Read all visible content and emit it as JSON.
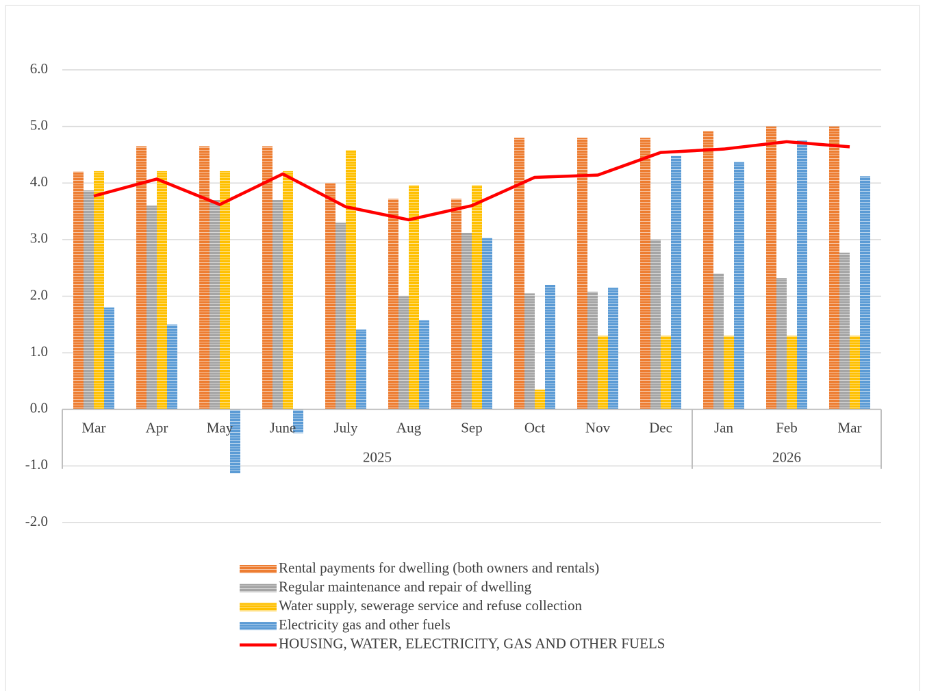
{
  "chart_data": {
    "type": "bar_line",
    "categories": [
      "Mar",
      "Apr",
      "May",
      "June",
      "July",
      "Aug",
      "Sep",
      "Oct",
      "Nov",
      "Dec",
      "Jan",
      "Feb",
      "Mar"
    ],
    "category_groups": [
      {
        "label": "2025",
        "span": 10
      },
      {
        "label": "2026",
        "span": 3
      }
    ],
    "ylim": [
      -2,
      6
    ],
    "yticks": [
      {
        "value": -2,
        "label": "-2.0"
      },
      {
        "value": -1,
        "label": "-1.0"
      },
      {
        "value": 0,
        "label": "0.0"
      },
      {
        "value": 1,
        "label": "1.0"
      },
      {
        "value": 2,
        "label": "2.0"
      },
      {
        "value": 3,
        "label": "3.0"
      },
      {
        "value": 4,
        "label": "4.0"
      },
      {
        "value": 5,
        "label": "5.0"
      },
      {
        "value": 6,
        "label": "6.0"
      }
    ],
    "grid": true,
    "series": [
      {
        "name": "Rental payments for dwelling (both owners and rentals)",
        "type": "bar",
        "color": "#ed7d31",
        "values": [
          4.2,
          4.65,
          4.65,
          4.65,
          4.0,
          3.72,
          3.72,
          4.8,
          4.8,
          4.8,
          4.92,
          5.0,
          5.0
        ]
      },
      {
        "name": "Regular maintenance and repair of dwelling",
        "type": "bar",
        "color": "#a5a5a5",
        "values": [
          3.87,
          3.6,
          3.7,
          3.7,
          3.3,
          2.0,
          3.12,
          2.05,
          2.08,
          3.0,
          2.4,
          2.32,
          2.77
        ]
      },
      {
        "name": "Water supply, sewerage service and refuse collection",
        "type": "bar",
        "color": "#ffc000",
        "values": [
          4.21,
          4.21,
          4.21,
          4.21,
          4.58,
          3.96,
          3.96,
          0.35,
          1.3,
          1.3,
          1.3,
          1.3,
          1.3
        ]
      },
      {
        "name": "Electricity gas and other fuels",
        "type": "bar",
        "color": "#5b9bd5",
        "values": [
          1.8,
          1.5,
          -1.13,
          -0.42,
          1.41,
          1.58,
          3.03,
          2.2,
          2.15,
          4.48,
          4.37,
          4.75,
          4.12
        ]
      },
      {
        "name": "HOUSING, WATER, ELECTRICITY, GAS AND OTHER FUELS",
        "type": "line",
        "color": "#ff0000",
        "values": [
          3.77,
          4.07,
          3.62,
          4.16,
          3.58,
          3.35,
          3.6,
          4.1,
          4.14,
          4.54,
          4.6,
          4.73,
          4.64
        ]
      }
    ]
  }
}
